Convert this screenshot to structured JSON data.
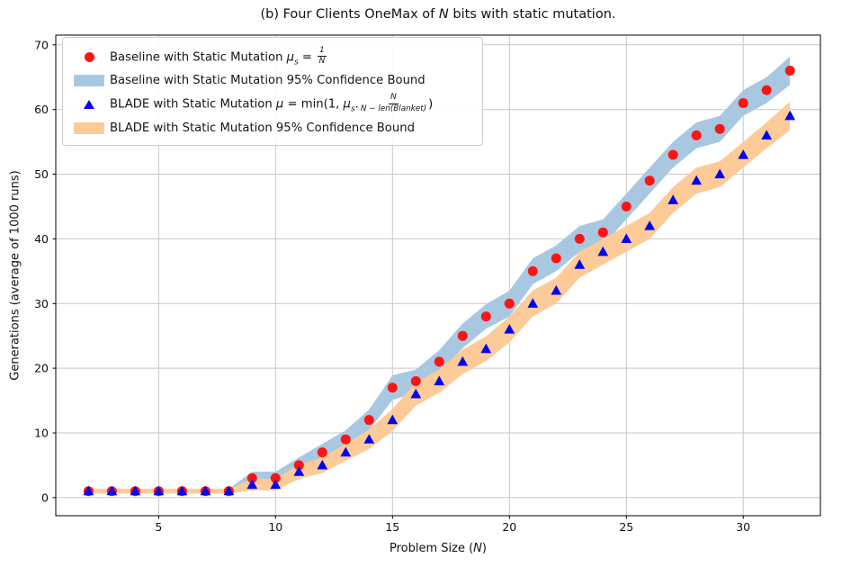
{
  "title": {
    "pre": "(b) Four Clients OneMax of ",
    "var": "N",
    "post": " bits with static mutation."
  },
  "axes": {
    "xlabel": {
      "pre": "Problem Size (",
      "var": "N",
      "post": ")"
    },
    "ylabel": "Generations (average of 1000 runs)"
  },
  "legend": {
    "items": [
      {
        "label": "Baseline with Static Mutation ",
        "math_lhs": "μ",
        "math_sub": "s",
        "math_eq": " = ",
        "frac_num": "1",
        "frac_den": "N",
        "marker_color": "#ff1414"
      },
      {
        "label": "Baseline with Static Mutation 95% Confidence Bound",
        "swatch_color": "#a8c8e2"
      },
      {
        "label": "BLADE with Static Mutation ",
        "math_lhs": "μ",
        "math_eq": " = min(1, ",
        "math_mu2": "μ",
        "math_sub": "s",
        "math_dot": ".",
        "frac_num": "N",
        "frac_den": "N − len(Blanket)",
        "math_close": ")",
        "marker_color": "#0404ee"
      },
      {
        "label": "BLADE with Static Mutation 95% Confidence Bound",
        "swatch_color": "#fccb97"
      }
    ]
  },
  "chart_data": {
    "type": "scatter",
    "x": [
      2,
      3,
      4,
      5,
      6,
      7,
      8,
      9,
      10,
      11,
      12,
      13,
      14,
      15,
      16,
      17,
      18,
      19,
      20,
      21,
      22,
      23,
      24,
      25,
      26,
      27,
      28,
      29,
      30,
      31,
      32
    ],
    "series": [
      {
        "name": "Baseline with Static Mutation",
        "marker": "circle",
        "color": "#ff1414",
        "values": [
          1,
          1,
          1,
          1,
          1,
          1,
          1,
          3,
          3,
          5,
          7,
          9,
          12,
          17,
          18,
          21,
          25,
          28,
          30,
          35,
          37,
          40,
          41,
          45,
          49,
          53,
          56,
          57,
          61,
          63,
          66
        ]
      },
      {
        "name": "BLADE with Static Mutation",
        "marker": "triangle",
        "color": "#0404ee",
        "values": [
          1,
          1,
          1,
          1,
          1,
          1,
          1,
          2,
          2,
          4,
          5,
          7,
          9,
          12,
          16,
          18,
          21,
          23,
          26,
          30,
          32,
          36,
          38,
          40,
          42,
          46,
          49,
          50,
          53,
          56,
          59
        ]
      }
    ],
    "bands": [
      {
        "name": "Baseline with Static Mutation 95% Confidence Bound",
        "color": "#a8c8e2",
        "lower": [
          0.65,
          0.65,
          0.65,
          0.65,
          0.65,
          0.65,
          0.65,
          2,
          2,
          3.8,
          5.7,
          7.6,
          10.4,
          15.1,
          16.2,
          19.2,
          23.1,
          26.1,
          28,
          33,
          35,
          38,
          39,
          43,
          47,
          51,
          54,
          55,
          59,
          61,
          63.8
        ],
        "upper": [
          1.35,
          1.35,
          1.35,
          1.35,
          1.35,
          1.35,
          1.35,
          4,
          4,
          6.2,
          8.3,
          10.4,
          13.6,
          18.9,
          19.8,
          22.8,
          26.9,
          29.9,
          32,
          37,
          39,
          42,
          43,
          47,
          51,
          55,
          58,
          59,
          63,
          65,
          68.2
        ]
      },
      {
        "name": "BLADE with Static Mutation 95% Confidence Bound",
        "color": "#fccb97",
        "lower": [
          0.65,
          0.65,
          0.65,
          0.65,
          0.65,
          0.65,
          0.65,
          1.1,
          1.1,
          2.9,
          3.8,
          5.7,
          7.5,
          10.3,
          14.2,
          16.2,
          19.1,
          21.1,
          24,
          28,
          30,
          34,
          36,
          38,
          40,
          44,
          47,
          48,
          51,
          54,
          56.8
        ],
        "upper": [
          1.35,
          1.35,
          1.35,
          1.35,
          1.35,
          1.35,
          1.35,
          2.9,
          2.9,
          5.1,
          6.2,
          8.3,
          10.5,
          13.7,
          17.8,
          19.8,
          22.9,
          24.9,
          28,
          32,
          34,
          38,
          40,
          42,
          44,
          48,
          51,
          52,
          55,
          58,
          61.2
        ]
      }
    ],
    "title": "(b) Four Clients OneMax of N bits with static mutation.",
    "xlabel": "Problem Size (N)",
    "ylabel": "Generations (average of 1000 runs)",
    "xticks": [
      5,
      10,
      15,
      20,
      25,
      30
    ],
    "yticks": [
      0,
      10,
      20,
      30,
      40,
      50,
      60,
      70
    ],
    "xlim": [
      0.6,
      33.3
    ],
    "ylim": [
      -2.8,
      71.5
    ],
    "grid": true,
    "grid_color": "#c7c7c7",
    "legend_position": "upper left"
  }
}
